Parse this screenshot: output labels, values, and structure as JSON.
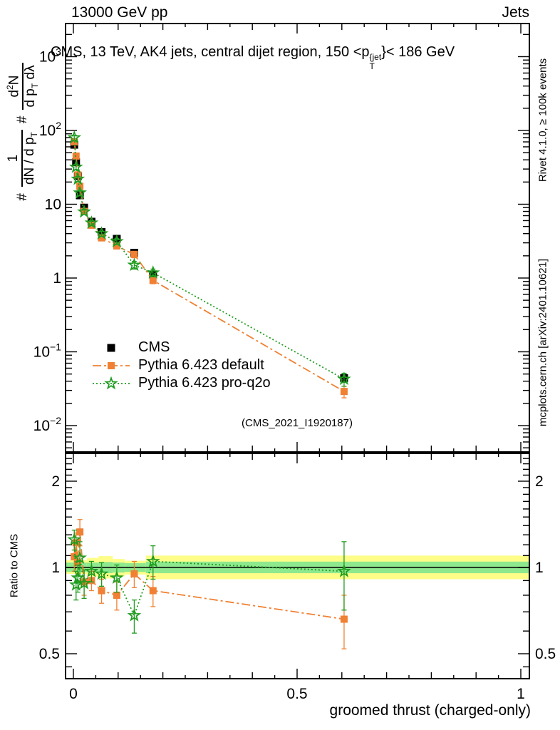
{
  "header": {
    "left": "13000 GeV pp",
    "right": "Jets"
  },
  "panel_title": {
    "prefix": "CMS, 13 TeV, AK4 jets, central dijet region, 150 <p",
    "sup": "{jet",
    "sub": "T",
    "suffix": "}< 186 GeV"
  },
  "ylabel": {
    "hash1": "#",
    "f1_num": "1",
    "f1_den_main": "dN / d p",
    "f1_den_sub": "T",
    "hash2": "#",
    "f2_num_main": "d",
    "f2_num_sup": "2",
    "f2_num_tail": "N",
    "f2_den_main": "d p",
    "f2_den_sub": "T",
    "f2_den_tail": " dλ"
  },
  "ratio_ylabel": "Ratio to CMS",
  "xlabel": "groomed thrust (charged-only)",
  "watermark": "(CMS_2021_I1920187)",
  "side_notes": {
    "top": "Rivet 4.1.0, ≥ 100k events",
    "bottom": "mcplots.cern.ch [arXiv:2401.10621]"
  },
  "legend": [
    {
      "label": "CMS"
    },
    {
      "label": "Pythia 6.423 default"
    },
    {
      "label": "Pythia 6.423 pro-q2o"
    }
  ],
  "colors": {
    "cms": "#000000",
    "pythia_default": "#f08033",
    "pythia_proq2o": "#1f9c1f",
    "band_yellow": "#fdfd87",
    "band_green": "#8ee88e",
    "gray_text": "#9c9c9c",
    "watermark": "#a6a6a6"
  },
  "chart_data": {
    "type": "line",
    "title": "CMS, 13 TeV, AK4 jets, central dijet region, 150 <p{jet,T}< 186 GeV",
    "xlabel": "groomed thrust (charged-only)",
    "ylabel_top": "1/(dN/dpT) d2N/(dpT dlambda)",
    "ylabel_bottom": "Ratio to CMS",
    "legend_position": "middle-left",
    "grid": false,
    "x": [
      0.002,
      0.006,
      0.01,
      0.0145,
      0.024,
      0.0405,
      0.063,
      0.097,
      0.136,
      0.178,
      0.605
    ],
    "series": [
      {
        "name": "CMS",
        "color": "#000000",
        "marker": "square-filled",
        "msize": 5.5,
        "line": "none",
        "values": [
          64,
          37,
          24,
          13.2,
          9.0,
          5.8,
          4.2,
          3.4,
          2.2,
          1.12,
          0.044
        ],
        "err_frac": [
          0.06,
          0.05,
          0.05,
          0.05,
          0.05,
          0.05,
          0.05,
          0.06,
          0.07,
          0.09,
          0.12
        ]
      },
      {
        "name": "Pythia 6.423 default",
        "color": "#f08033",
        "marker": "square-filled",
        "msize": 5,
        "line": "dashdot",
        "values": [
          70,
          45,
          25,
          17.5,
          8.0,
          5.2,
          3.5,
          2.72,
          2.09,
          0.93,
          0.029
        ],
        "err_frac": [
          0.08,
          0.08,
          0.08,
          0.09,
          0.08,
          0.07,
          0.08,
          0.09,
          0.1,
          0.1,
          0.18
        ],
        "ratio": [
          1.09,
          1.22,
          1.04,
          1.33,
          0.89,
          0.9,
          0.83,
          0.8,
          0.95,
          0.83,
          0.66
        ],
        "ratio_err": [
          0.12,
          0.1,
          0.09,
          0.14,
          0.09,
          0.07,
          0.08,
          0.09,
          0.1,
          0.1,
          0.14
        ]
      },
      {
        "name": "Pythia 6.423 pro-q2o",
        "color": "#1f9c1f",
        "marker": "star-open",
        "msize": 7.8,
        "line": "dotted",
        "values": [
          80,
          32,
          22,
          14.3,
          7.9,
          5.6,
          4.0,
          3.13,
          1.5,
          1.18,
          0.0427
        ],
        "err_frac": [
          0.08,
          0.08,
          0.08,
          0.09,
          0.08,
          0.07,
          0.08,
          0.09,
          0.12,
          0.12,
          0.2
        ],
        "ratio": [
          1.25,
          0.87,
          0.92,
          1.08,
          0.88,
          0.97,
          0.95,
          0.92,
          0.68,
          1.05,
          0.97
        ],
        "ratio_err": [
          0.1,
          0.1,
          0.1,
          0.15,
          0.1,
          0.08,
          0.09,
          0.1,
          0.09,
          0.14,
          0.26
        ]
      }
    ],
    "ratio_reference": 1.0,
    "bands": [
      {
        "x0": -0.018,
        "x1": 0.03,
        "yellow": [
          0.95,
          1.06
        ],
        "green": [
          0.965,
          1.04
        ]
      },
      {
        "x0": 0.03,
        "x1": 0.056,
        "yellow": [
          0.93,
          1.08
        ],
        "green": [
          0.96,
          1.04
        ]
      },
      {
        "x0": 0.056,
        "x1": 0.088,
        "yellow": [
          0.915,
          1.095
        ],
        "green": [
          0.955,
          1.045
        ]
      },
      {
        "x0": 0.088,
        "x1": 0.115,
        "yellow": [
          0.93,
          1.07
        ],
        "green": [
          0.96,
          1.04
        ]
      },
      {
        "x0": 0.115,
        "x1": 0.162,
        "yellow": [
          0.945,
          1.055
        ],
        "green": [
          0.965,
          1.035
        ]
      },
      {
        "x0": 0.162,
        "x1": 1.019,
        "yellow": [
          0.91,
          1.1
        ],
        "green": [
          0.955,
          1.048
        ]
      }
    ],
    "axes": {
      "x": {
        "min": -0.0175,
        "max": 1.0185,
        "ticks": [
          {
            "v": 0,
            "label": "0"
          },
          {
            "v": 0.5,
            "label": "0.5"
          },
          {
            "v": 1,
            "label": "1"
          }
        ]
      },
      "y_main": {
        "scale": "log",
        "min": 0.0043,
        "max": 2800,
        "ticks": [
          {
            "v": 1000,
            "base": "10",
            "exp": "3"
          },
          {
            "v": 100,
            "base": "10",
            "exp": "2"
          },
          {
            "v": 10,
            "base": "10",
            "exp": ""
          },
          {
            "v": 1,
            "base": "1",
            "exp": ""
          },
          {
            "v": 0.1,
            "base": "10",
            "exp": "−1"
          },
          {
            "v": 0.01,
            "base": "10",
            "exp": "−2"
          }
        ]
      },
      "y_ratio": {
        "scale": "log",
        "min": 0.41,
        "max": 2.49,
        "ticks": [
          {
            "v": 2,
            "label": "2"
          },
          {
            "v": 1,
            "label": "1"
          },
          {
            "v": 0.5,
            "label": "0.5"
          }
        ]
      }
    }
  }
}
